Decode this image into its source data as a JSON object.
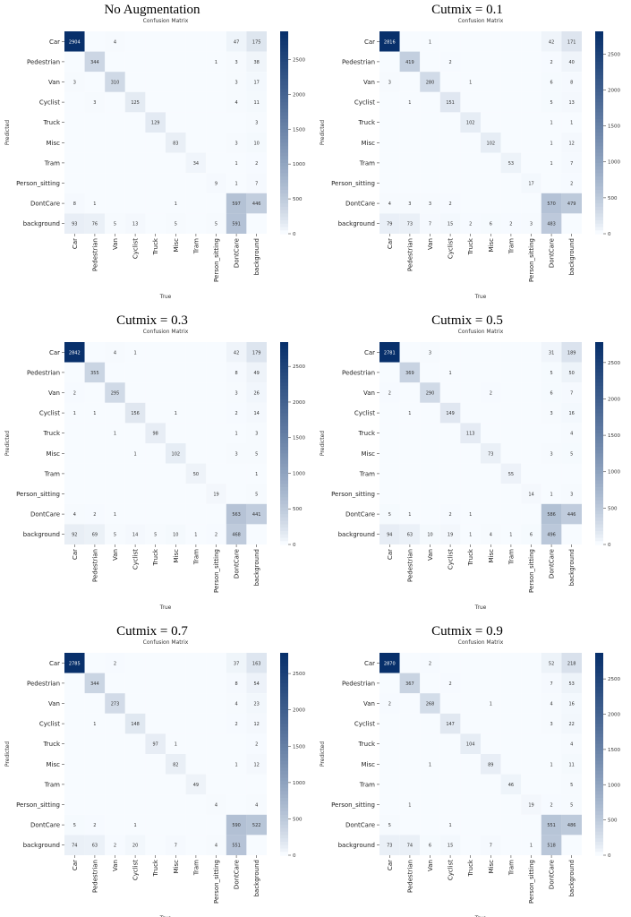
{
  "colors": {
    "low": "#f7fbff",
    "high": "#08306b",
    "cell_text_dark": "#333333",
    "cell_text_light": "#ffffff"
  },
  "chart_data": [
    {
      "type": "heatmap",
      "heading": "No Augmentation",
      "title": "Confusion Matrix",
      "xlabel": "True",
      "ylabel": "Predicted",
      "x_categories": [
        "Car",
        "Pedestrian",
        "Van",
        "Cyclist",
        "Truck",
        "Misc",
        "Tram",
        "Person_sitting",
        "DontCare",
        "background"
      ],
      "y_categories": [
        "Car",
        "Pedestrian",
        "Van",
        "Cyclist",
        "Truck",
        "Misc",
        "Tram",
        "Person_sitting",
        "DontCare",
        "background"
      ],
      "colorbar_ticks": [
        0,
        500,
        1000,
        1500,
        2000,
        2500
      ],
      "vmax": 2904,
      "matrix": [
        [
          2904,
          null,
          4,
          null,
          null,
          null,
          null,
          null,
          47,
          175
        ],
        [
          null,
          344,
          null,
          null,
          null,
          null,
          null,
          1,
          3,
          38
        ],
        [
          3,
          null,
          310,
          null,
          null,
          null,
          null,
          null,
          3,
          17
        ],
        [
          null,
          3,
          null,
          125,
          null,
          null,
          null,
          null,
          4,
          11
        ],
        [
          null,
          null,
          null,
          null,
          129,
          null,
          null,
          null,
          null,
          3
        ],
        [
          null,
          null,
          null,
          null,
          null,
          83,
          null,
          null,
          3,
          10
        ],
        [
          null,
          null,
          null,
          null,
          null,
          null,
          34,
          null,
          1,
          2
        ],
        [
          null,
          null,
          null,
          null,
          null,
          null,
          null,
          9,
          1,
          7
        ],
        [
          8,
          1,
          null,
          null,
          null,
          1,
          null,
          null,
          597,
          446
        ],
        [
          93,
          76,
          5,
          13,
          null,
          5,
          null,
          5,
          591,
          null
        ]
      ]
    },
    {
      "type": "heatmap",
      "heading": "Cutmix = 0.1",
      "title": "Confusion Matrix",
      "xlabel": "True",
      "ylabel": "Predicted",
      "x_categories": [
        "Car",
        "Pedestrian",
        "Van",
        "Cyclist",
        "Truck",
        "Misc",
        "Tram",
        "Person_sitting",
        "DontCare",
        "background"
      ],
      "y_categories": [
        "Car",
        "Pedestrian",
        "Van",
        "Cyclist",
        "Truck",
        "Misc",
        "Tram",
        "Person_sitting",
        "DontCare",
        "background"
      ],
      "colorbar_ticks": [
        0,
        500,
        1000,
        1500,
        2000,
        2500
      ],
      "vmax": 2816,
      "matrix": [
        [
          2816,
          null,
          1,
          null,
          null,
          null,
          null,
          null,
          42,
          171
        ],
        [
          null,
          419,
          null,
          2,
          null,
          null,
          null,
          null,
          2,
          40
        ],
        [
          3,
          null,
          280,
          null,
          1,
          null,
          null,
          null,
          6,
          8
        ],
        [
          null,
          1,
          null,
          151,
          null,
          null,
          null,
          null,
          5,
          13
        ],
        [
          null,
          null,
          null,
          null,
          102,
          null,
          null,
          null,
          1,
          1
        ],
        [
          null,
          null,
          null,
          null,
          null,
          102,
          null,
          null,
          1,
          12
        ],
        [
          null,
          null,
          null,
          null,
          null,
          null,
          53,
          null,
          1,
          7
        ],
        [
          null,
          null,
          null,
          null,
          null,
          null,
          null,
          17,
          null,
          2
        ],
        [
          4,
          3,
          3,
          2,
          null,
          null,
          null,
          null,
          570,
          479
        ],
        [
          79,
          73,
          7,
          15,
          2,
          6,
          2,
          3,
          483,
          null
        ]
      ]
    },
    {
      "type": "heatmap",
      "heading": "Cutmix = 0.3",
      "title": "Confusion Matrix",
      "xlabel": "True",
      "ylabel": "Predicted",
      "x_categories": [
        "Car",
        "Pedestrian",
        "Van",
        "Cyclist",
        "Truck",
        "Misc",
        "Tram",
        "Person_sitting",
        "DontCare",
        "background"
      ],
      "y_categories": [
        "Car",
        "Pedestrian",
        "Van",
        "Cyclist",
        "Truck",
        "Misc",
        "Tram",
        "Person_sitting",
        "DontCare",
        "background"
      ],
      "colorbar_ticks": [
        0,
        500,
        1000,
        1500,
        2000,
        2500
      ],
      "vmax": 2842,
      "matrix": [
        [
          2842,
          null,
          4,
          1,
          null,
          null,
          null,
          null,
          42,
          179
        ],
        [
          null,
          355,
          null,
          null,
          null,
          null,
          null,
          null,
          8,
          49
        ],
        [
          2,
          null,
          295,
          null,
          null,
          null,
          null,
          null,
          3,
          26
        ],
        [
          1,
          1,
          null,
          156,
          null,
          1,
          null,
          null,
          2,
          14
        ],
        [
          null,
          null,
          1,
          null,
          98,
          null,
          null,
          null,
          1,
          3
        ],
        [
          null,
          null,
          null,
          1,
          null,
          102,
          null,
          null,
          3,
          5
        ],
        [
          null,
          null,
          null,
          null,
          null,
          null,
          50,
          null,
          null,
          1
        ],
        [
          null,
          null,
          null,
          null,
          null,
          null,
          null,
          19,
          null,
          5
        ],
        [
          4,
          2,
          1,
          null,
          null,
          null,
          null,
          null,
          563,
          441
        ],
        [
          92,
          69,
          5,
          14,
          5,
          10,
          1,
          2,
          468,
          null
        ]
      ]
    },
    {
      "type": "heatmap",
      "heading": "Cutmix = 0.5",
      "title": "Confusion Matrix",
      "xlabel": "True",
      "ylabel": "Predicted",
      "x_categories": [
        "Car",
        "Pedestrian",
        "Van",
        "Cyclist",
        "Truck",
        "Misc",
        "Tram",
        "Person_sitting",
        "DontCare",
        "background"
      ],
      "y_categories": [
        "Car",
        "Pedestrian",
        "Van",
        "Cyclist",
        "Truck",
        "Misc",
        "Tram",
        "Person_sitting",
        "DontCare",
        "background"
      ],
      "colorbar_ticks": [
        0,
        500,
        1000,
        1500,
        2000,
        2500
      ],
      "vmax": 2781,
      "matrix": [
        [
          2781,
          null,
          3,
          null,
          null,
          null,
          null,
          null,
          31,
          189
        ],
        [
          null,
          369,
          null,
          1,
          null,
          null,
          null,
          null,
          5,
          50
        ],
        [
          2,
          null,
          290,
          null,
          null,
          2,
          null,
          null,
          6,
          7
        ],
        [
          null,
          1,
          null,
          149,
          null,
          null,
          null,
          null,
          3,
          16
        ],
        [
          null,
          null,
          null,
          null,
          113,
          null,
          null,
          null,
          null,
          4
        ],
        [
          null,
          null,
          null,
          null,
          null,
          73,
          null,
          null,
          3,
          5
        ],
        [
          null,
          null,
          null,
          null,
          null,
          null,
          55,
          null,
          null,
          null
        ],
        [
          null,
          null,
          null,
          null,
          null,
          null,
          null,
          14,
          1,
          3
        ],
        [
          5,
          1,
          null,
          2,
          1,
          null,
          null,
          null,
          586,
          446
        ],
        [
          94,
          63,
          10,
          19,
          1,
          4,
          1,
          6,
          496,
          null
        ]
      ]
    },
    {
      "type": "heatmap",
      "heading": "Cutmix = 0.7",
      "title": "Confusion Matrix",
      "xlabel": "True",
      "ylabel": "Predicted",
      "x_categories": [
        "Car",
        "Pedestrian",
        "Van",
        "Cyclist",
        "Truck",
        "Misc",
        "Tram",
        "Person_sitting",
        "DontCare",
        "background"
      ],
      "y_categories": [
        "Car",
        "Pedestrian",
        "Van",
        "Cyclist",
        "Truck",
        "Misc",
        "Tram",
        "Person_sitting",
        "DontCare",
        "background"
      ],
      "colorbar_ticks": [
        0,
        500,
        1000,
        1500,
        2000,
        2500
      ],
      "vmax": 2785,
      "matrix": [
        [
          2785,
          null,
          2,
          null,
          null,
          null,
          null,
          null,
          37,
          163
        ],
        [
          null,
          344,
          null,
          null,
          null,
          null,
          null,
          null,
          8,
          54
        ],
        [
          null,
          null,
          273,
          null,
          null,
          null,
          null,
          null,
          4,
          23
        ],
        [
          null,
          1,
          null,
          148,
          null,
          null,
          null,
          null,
          2,
          12
        ],
        [
          null,
          null,
          null,
          null,
          97,
          1,
          null,
          null,
          null,
          2
        ],
        [
          null,
          null,
          null,
          null,
          null,
          82,
          null,
          null,
          1,
          12
        ],
        [
          null,
          null,
          null,
          null,
          null,
          null,
          49,
          null,
          null,
          null
        ],
        [
          null,
          null,
          null,
          null,
          null,
          null,
          null,
          4,
          null,
          4
        ],
        [
          5,
          2,
          null,
          1,
          null,
          null,
          null,
          null,
          590,
          522
        ],
        [
          74,
          63,
          2,
          20,
          null,
          7,
          null,
          4,
          551,
          null
        ]
      ]
    },
    {
      "type": "heatmap",
      "heading": "Cutmix = 0.9",
      "title": "Confusion Matrix",
      "xlabel": "True",
      "ylabel": "Predicted",
      "x_categories": [
        "Car",
        "Pedestrian",
        "Van",
        "Cyclist",
        "Truck",
        "Misc",
        "Tram",
        "Person_sitting",
        "DontCare",
        "background"
      ],
      "y_categories": [
        "Car",
        "Pedestrian",
        "Van",
        "Cyclist",
        "Truck",
        "Misc",
        "Tram",
        "Person_sitting",
        "DontCare",
        "background"
      ],
      "colorbar_ticks": [
        0,
        500,
        1000,
        1500,
        2000,
        2500
      ],
      "vmax": 2870,
      "matrix": [
        [
          2870,
          null,
          2,
          null,
          null,
          null,
          null,
          null,
          52,
          218
        ],
        [
          null,
          367,
          null,
          2,
          null,
          null,
          null,
          null,
          7,
          53
        ],
        [
          2,
          null,
          268,
          null,
          null,
          1,
          null,
          null,
          4,
          16
        ],
        [
          null,
          null,
          null,
          147,
          null,
          null,
          null,
          null,
          3,
          22
        ],
        [
          null,
          null,
          null,
          null,
          104,
          null,
          null,
          null,
          null,
          4
        ],
        [
          null,
          null,
          1,
          null,
          null,
          89,
          null,
          null,
          1,
          11
        ],
        [
          null,
          null,
          null,
          null,
          null,
          null,
          46,
          null,
          null,
          5
        ],
        [
          null,
          1,
          null,
          null,
          null,
          null,
          null,
          19,
          2,
          5
        ],
        [
          5,
          null,
          null,
          1,
          null,
          null,
          null,
          null,
          551,
          486
        ],
        [
          73,
          74,
          6,
          15,
          null,
          7,
          null,
          1,
          518,
          null
        ]
      ]
    }
  ]
}
